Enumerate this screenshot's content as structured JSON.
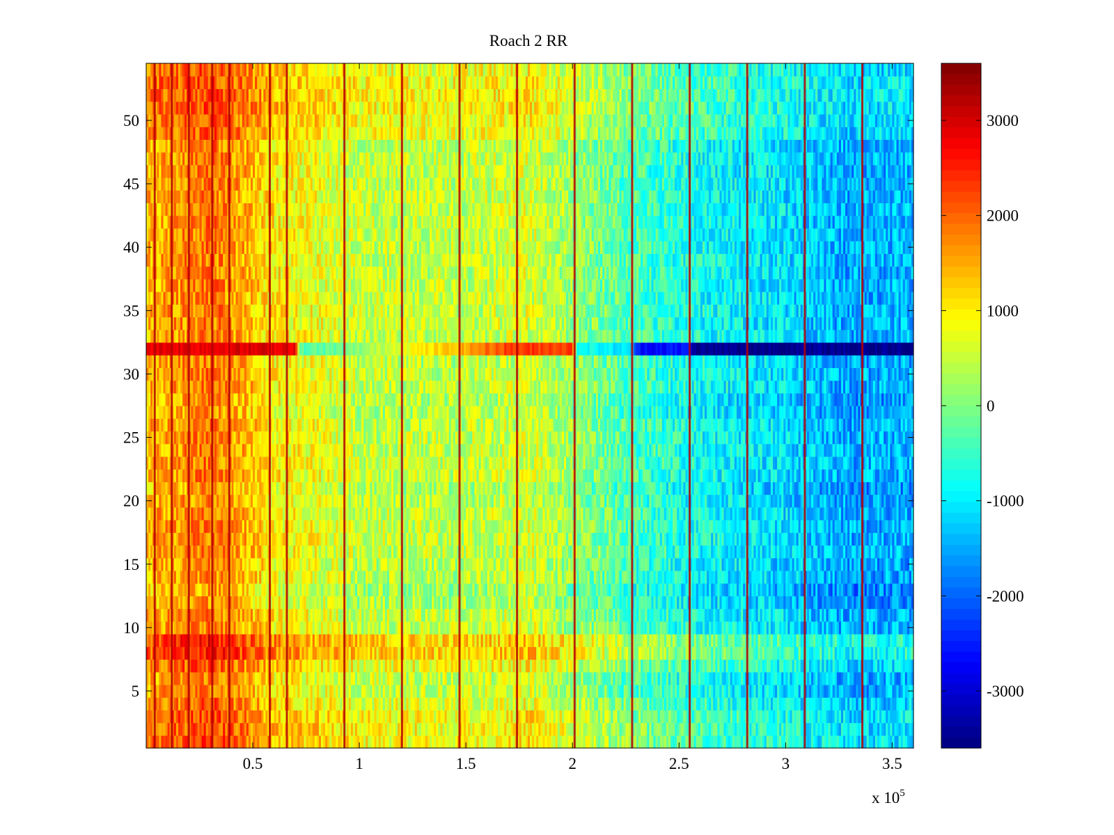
{
  "chart_data": {
    "type": "heatmap",
    "title": "Roach 2 RR",
    "xlabel": "",
    "ylabel": "",
    "x_multiplier_label": "x 10",
    "x_multiplier_exponent": "5",
    "xlim": [
      0,
      3.6
    ],
    "ylim": [
      0.5,
      54.5
    ],
    "xticks": [
      {
        "value": 0.5,
        "label": "0.5"
      },
      {
        "value": 1,
        "label": "1"
      },
      {
        "value": 1.5,
        "label": "1.5"
      },
      {
        "value": 2,
        "label": "2"
      },
      {
        "value": 2.5,
        "label": "2.5"
      },
      {
        "value": 3,
        "label": "3"
      },
      {
        "value": 3.5,
        "label": "3.5"
      }
    ],
    "yticks": [
      {
        "value": 5,
        "label": "5"
      },
      {
        "value": 10,
        "label": "10"
      },
      {
        "value": 15,
        "label": "15"
      },
      {
        "value": 20,
        "label": "20"
      },
      {
        "value": 25,
        "label": "25"
      },
      {
        "value": 30,
        "label": "30"
      },
      {
        "value": 35,
        "label": "35"
      },
      {
        "value": 40,
        "label": "40"
      },
      {
        "value": 45,
        "label": "45"
      },
      {
        "value": 50,
        "label": "50"
      }
    ],
    "colormap": "jet",
    "clim": [
      -3600,
      3600
    ],
    "colorbar": {
      "ticks": [
        {
          "value": 3000,
          "label": "3000"
        },
        {
          "value": 2000,
          "label": "2000"
        },
        {
          "value": 1000,
          "label": "1000"
        },
        {
          "value": 0,
          "label": "0"
        },
        {
          "value": -1000,
          "label": "-1000"
        },
        {
          "value": -2000,
          "label": "-2000"
        },
        {
          "value": -3000,
          "label": "-3000"
        }
      ]
    },
    "rows": 54,
    "trend_x": [
      0,
      0.3,
      0.45,
      0.6,
      0.8,
      1.0,
      1.5,
      1.8,
      2.0,
      2.3,
      2.6,
      3.0,
      3.3,
      3.6
    ],
    "trend_values": [
      1400,
      1900,
      1500,
      1000,
      800,
      500,
      450,
      650,
      200,
      -400,
      -800,
      -1100,
      -1500,
      -1400
    ],
    "row_offsets": {
      "1": 400,
      "2": 400,
      "3": 400,
      "4": 200,
      "7": 300,
      "8": 700,
      "9": 700,
      "12": -200,
      "13": -300,
      "14": -100,
      "15": -100,
      "20": -100,
      "21": -200,
      "27": -150,
      "28": -150,
      "31": -50,
      "49": 300,
      "50": 300,
      "51": 400,
      "52": 400,
      "53": 400,
      "54": 300
    },
    "anomaly_row": {
      "row": 32,
      "x": [
        0,
        0.7,
        0.72,
        0.93,
        1.2,
        1.45,
        1.7,
        2.0,
        2.02,
        2.28,
        2.3,
        2.55,
        2.57,
        3.6
      ],
      "values": [
        2900,
        2900,
        -300,
        -200,
        800,
        1300,
        2300,
        2300,
        -700,
        -1200,
        -2600,
        -2600,
        -3500,
        -3500
      ]
    },
    "stripe_x": [
      0.04,
      0.12,
      0.2,
      0.31,
      0.39,
      0.58,
      0.66,
      0.93,
      1.2,
      1.47,
      1.74,
      2.01,
      2.28,
      2.55,
      2.82,
      3.09,
      3.36
    ]
  }
}
